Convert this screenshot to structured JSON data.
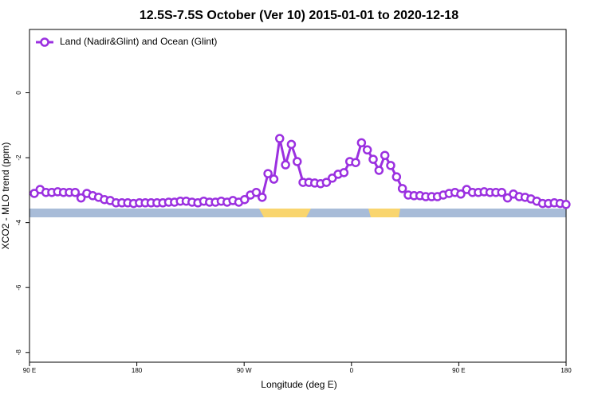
{
  "chart_data": {
    "type": "line",
    "title": "12.5S-7.5S October (Ver 10)   2015-01-01 to 2020-12-18",
    "x_label": "Longitude (deg E)",
    "y_label": "XCO2 - MLO trend (ppm)",
    "xlim": [
      90,
      540
    ],
    "xticks": [
      {
        "value": 90,
        "label": "90 E"
      },
      180,
      {
        "value": 270,
        "label": "90 W"
      },
      {
        "value": 360,
        "label": "0"
      },
      {
        "value": 450,
        "label": "90 E"
      },
      {
        "value": 540,
        "label": "180"
      }
    ],
    "ylim": [
      -8.3,
      1.95
    ],
    "yticks": [
      0,
      -2,
      -4,
      -6,
      -8
    ],
    "legend": "top-left",
    "x": [
      94,
      98.9,
      103.8,
      108.7,
      113.6,
      118.5,
      123.4,
      128.3,
      133.2,
      138.1,
      143,
      147.9,
      152.8,
      157.7,
      162.6,
      167.5,
      172.4,
      177.3,
      182.2,
      187.1,
      192,
      196.9,
      201.8,
      206.7,
      211.6,
      216.5,
      221.4,
      226.3,
      231.2,
      236.1,
      241,
      245.9,
      250.8,
      255.7,
      260.6,
      265.5,
      270.4,
      275.3,
      280.2,
      285.1,
      290,
      294.9,
      299.8,
      304.7,
      309.6,
      314.5,
      319.4,
      324.3,
      329.2,
      334.1,
      339,
      343.9,
      348.8,
      353.7,
      358.6,
      363.5,
      368.4,
      373.3,
      378.2,
      383.1,
      388,
      392.9,
      397.8,
      402.7,
      407.6,
      412.5,
      417.4,
      422.3,
      427.2,
      432.1,
      437,
      441.9,
      446.8,
      451.7,
      456.6,
      461.5,
      466.4,
      471.3,
      476.2,
      481.1,
      486,
      490.9,
      495.8,
      500.7,
      505.6,
      510.5,
      515.4,
      520.3,
      525.2,
      530.1,
      535,
      539.9
    ],
    "series": [
      {
        "name": "Land (Nadir&Glint) and Ocean (Glint)",
        "color": "#9b30e0",
        "values": [
          -3.1,
          -2.98,
          -3.07,
          -3.07,
          -3.05,
          -3.07,
          -3.07,
          -3.07,
          -3.24,
          -3.1,
          -3.17,
          -3.22,
          -3.29,
          -3.32,
          -3.39,
          -3.39,
          -3.39,
          -3.41,
          -3.39,
          -3.39,
          -3.39,
          -3.39,
          -3.39,
          -3.37,
          -3.37,
          -3.34,
          -3.34,
          -3.37,
          -3.39,
          -3.34,
          -3.37,
          -3.37,
          -3.34,
          -3.37,
          -3.32,
          -3.37,
          -3.29,
          -3.15,
          -3.07,
          -3.22,
          -2.49,
          -2.66,
          -1.41,
          -2.22,
          -1.59,
          -2.12,
          -2.76,
          -2.76,
          -2.78,
          -2.8,
          -2.76,
          -2.63,
          -2.51,
          -2.46,
          -2.12,
          -2.15,
          -1.54,
          -1.76,
          -2.05,
          -2.39,
          -1.93,
          -2.24,
          -2.59,
          -2.95,
          -3.15,
          -3.17,
          -3.17,
          -3.2,
          -3.2,
          -3.2,
          -3.15,
          -3.1,
          -3.07,
          -3.12,
          -2.98,
          -3.07,
          -3.07,
          -3.05,
          -3.07,
          -3.07,
          -3.07,
          -3.24,
          -3.12,
          -3.2,
          -3.22,
          -3.27,
          -3.34,
          -3.41,
          -3.41,
          -3.39,
          -3.41,
          -3.44
        ]
      }
    ]
  }
}
